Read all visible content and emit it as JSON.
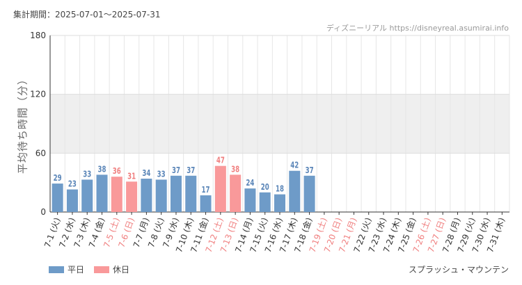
{
  "header": {
    "period": "集計期間：2025-07-01～2025-07-31",
    "source": "ディズニーリアル https://disneyreal.asumirai.info"
  },
  "footer": {
    "attraction": "スプラッシュ・マウンテン"
  },
  "colors": {
    "weekday": "#6e9bc8",
    "holiday": "#f9999a",
    "holiday_label": "#f08080",
    "weekday_label": "#5b86b8"
  },
  "chart_data": {
    "type": "bar",
    "ylabel": "平均待ち時間（分）",
    "ylim": [
      0,
      180
    ],
    "yticks": [
      0,
      60,
      120,
      180
    ],
    "shaded_band": [
      60,
      120
    ],
    "legend": [
      {
        "key": "weekday",
        "label": "平日"
      },
      {
        "key": "holiday",
        "label": "休日"
      }
    ],
    "categories": [
      "7-1 (火)",
      "7-2 (水)",
      "7-3 (木)",
      "7-4 (金)",
      "7-5 (土)",
      "7-6 (日)",
      "7-7 (月)",
      "7-8 (火)",
      "7-9 (水)",
      "7-10 (木)",
      "7-11 (金)",
      "7-12 (土)",
      "7-13 (日)",
      "7-14 (月)",
      "7-15 (火)",
      "7-16 (水)",
      "7-17 (木)",
      "7-18 (金)",
      "7-19 (土)",
      "7-20 (日)",
      "7-21 (月)",
      "7-22 (火)",
      "7-23 (水)",
      "7-24 (木)",
      "7-25 (金)",
      "7-26 (土)",
      "7-27 (日)",
      "7-28 (月)",
      "7-29 (火)",
      "7-30 (水)",
      "7-31 (木)"
    ],
    "day_type": [
      "weekday",
      "weekday",
      "weekday",
      "weekday",
      "holiday",
      "holiday",
      "weekday",
      "weekday",
      "weekday",
      "weekday",
      "weekday",
      "holiday",
      "holiday",
      "weekday",
      "weekday",
      "weekday",
      "weekday",
      "weekday",
      "holiday",
      "holiday",
      "holiday",
      "weekday",
      "weekday",
      "weekday",
      "weekday",
      "holiday",
      "holiday",
      "weekday",
      "weekday",
      "weekday",
      "weekday"
    ],
    "values": [
      29,
      23,
      33,
      38,
      36,
      31,
      34,
      33,
      37,
      37,
      17,
      47,
      38,
      24,
      20,
      18,
      42,
      37,
      null,
      null,
      null,
      null,
      null,
      null,
      null,
      null,
      null,
      null,
      null,
      null,
      null
    ]
  }
}
